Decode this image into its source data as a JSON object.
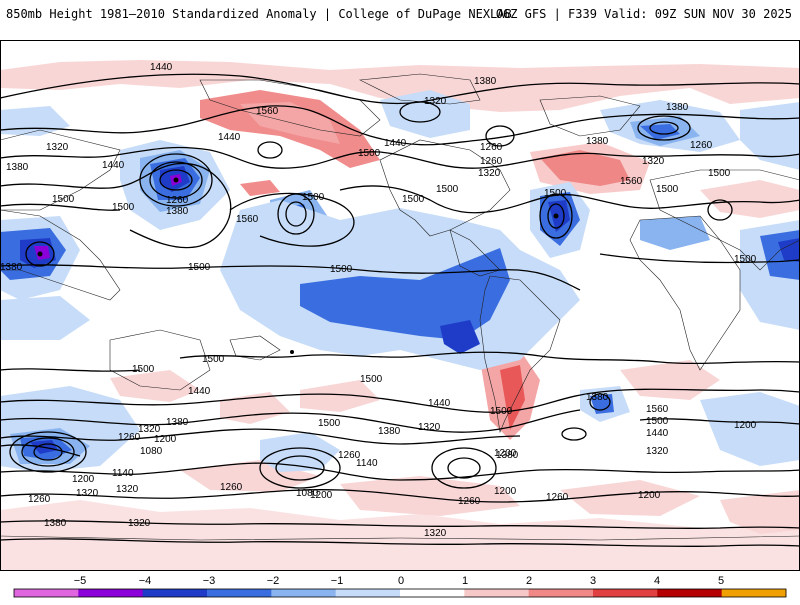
{
  "header": {
    "title_left": "850mb Height 1981–2010 Standardized Anomaly | College of DuPage NEXLAB",
    "title_right": "06Z GFS | F339 Valid: 09Z SUN NOV 30 2025"
  },
  "map": {
    "contour_labels": [
      "1440",
      "1560",
      "1380",
      "1320",
      "1380",
      "1440",
      "1380",
      "1320",
      "1260",
      "1440",
      "1500",
      "1500",
      "1380",
      "1260",
      "1380",
      "1440",
      "1500",
      "1560",
      "1500",
      "1500",
      "1500",
      "1500",
      "1500",
      "1560",
      "1500",
      "1320",
      "1260",
      "1320",
      "1380",
      "1260",
      "1500",
      "1500",
      "1500",
      "1500",
      "1500",
      "1500",
      "1440",
      "1380",
      "1320",
      "1260",
      "1200",
      "1080",
      "1140",
      "1500",
      "1440",
      "1380",
      "1320",
      "1260",
      "1200",
      "1140",
      "1080",
      "1200",
      "1320",
      "1500",
      "1380",
      "1560",
      "1500",
      "1440",
      "1320",
      "1200",
      "1260",
      "1260",
      "1200",
      "1260",
      "1320",
      "1380",
      "1260",
      "1200",
      "1320",
      "1380",
      "1200",
      "1320"
    ]
  },
  "colorbar": {
    "tick_labels": [
      "−5",
      "−4",
      "−3",
      "−2",
      "−1",
      "0",
      "1",
      "2",
      "3",
      "4",
      "5"
    ],
    "colors": [
      "#e066e0",
      "#8b00d9",
      "#1e3cc8",
      "#3a6ee0",
      "#8ab4f0",
      "#c6dcf8",
      "#ffffff",
      "#f7c8c8",
      "#f08888",
      "#e04040",
      "#b40000",
      "#f0a000"
    ]
  }
}
